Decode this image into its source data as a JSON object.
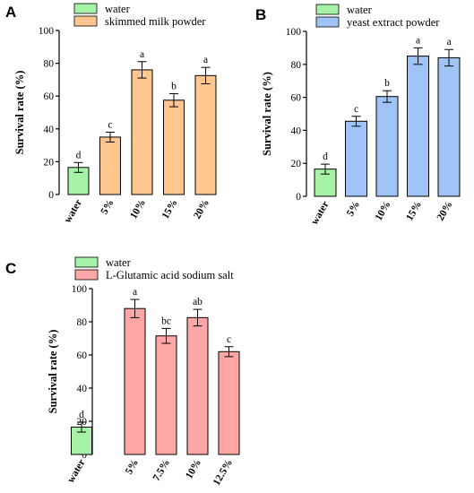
{
  "chart_data": [
    {
      "type": "bar",
      "panel": "A",
      "legend": [
        {
          "label": "water",
          "color": "#a6f2a6"
        },
        {
          "label": "skimmed milk powder",
          "color": "#ffc78f"
        }
      ],
      "ylabel": "Survival rate (%)",
      "ylim": [
        0,
        100
      ],
      "yticks": [
        "0",
        "20",
        "40",
        "60",
        "80",
        "100"
      ],
      "categories": [
        "water",
        "5%",
        "10%",
        "15%",
        "20%"
      ],
      "values": [
        16.5,
        35,
        76,
        57.5,
        72.5
      ],
      "errors": [
        3,
        3,
        5,
        4,
        5
      ],
      "labels": [
        "d",
        "c",
        "a",
        "b",
        "a"
      ],
      "colors": [
        "#a6f2a6",
        "#ffc78f",
        "#ffc78f",
        "#ffc78f",
        "#ffc78f"
      ]
    },
    {
      "type": "bar",
      "panel": "B",
      "legend": [
        {
          "label": "water",
          "color": "#a6f2a6"
        },
        {
          "label": "yeast extract powder",
          "color": "#9fc4f5"
        }
      ],
      "ylabel": "Survival rate (%)",
      "ylim": [
        0,
        100
      ],
      "yticks": [
        "0",
        "20",
        "40",
        "60",
        "80",
        "100"
      ],
      "categories": [
        "water",
        "5%",
        "10%",
        "15%",
        "20%"
      ],
      "values": [
        16.5,
        45.5,
        60.5,
        85,
        84
      ],
      "errors": [
        3,
        3,
        3.5,
        5,
        5
      ],
      "labels": [
        "d",
        "c",
        "b",
        "a",
        "a"
      ],
      "colors": [
        "#a6f2a6",
        "#9fc4f5",
        "#9fc4f5",
        "#9fc4f5",
        "#9fc4f5"
      ]
    },
    {
      "type": "bar",
      "panel": "C",
      "legend": [
        {
          "label": "water",
          "color": "#a6f2a6"
        },
        {
          "label": "L-Glutamic acid sodium salt",
          "color": "#ffa6a6"
        }
      ],
      "ylabel": "Survival rate (%)",
      "ylim": [
        0,
        100
      ],
      "yticks": [
        "0",
        "20",
        "40",
        "60",
        "80",
        "100"
      ],
      "categories": [
        "water",
        "5%",
        "7.5%",
        "10%",
        "12.5%"
      ],
      "values": [
        16.5,
        88,
        71.5,
        82.5,
        62
      ],
      "errors": [
        3,
        5.5,
        4.5,
        5,
        3
      ],
      "labels": [
        "d",
        "a",
        "bc",
        "ab",
        "c"
      ],
      "colors": [
        "#a6f2a6",
        "#ffa6a6",
        "#ffa6a6",
        "#ffa6a6",
        "#ffa6a6"
      ]
    }
  ]
}
